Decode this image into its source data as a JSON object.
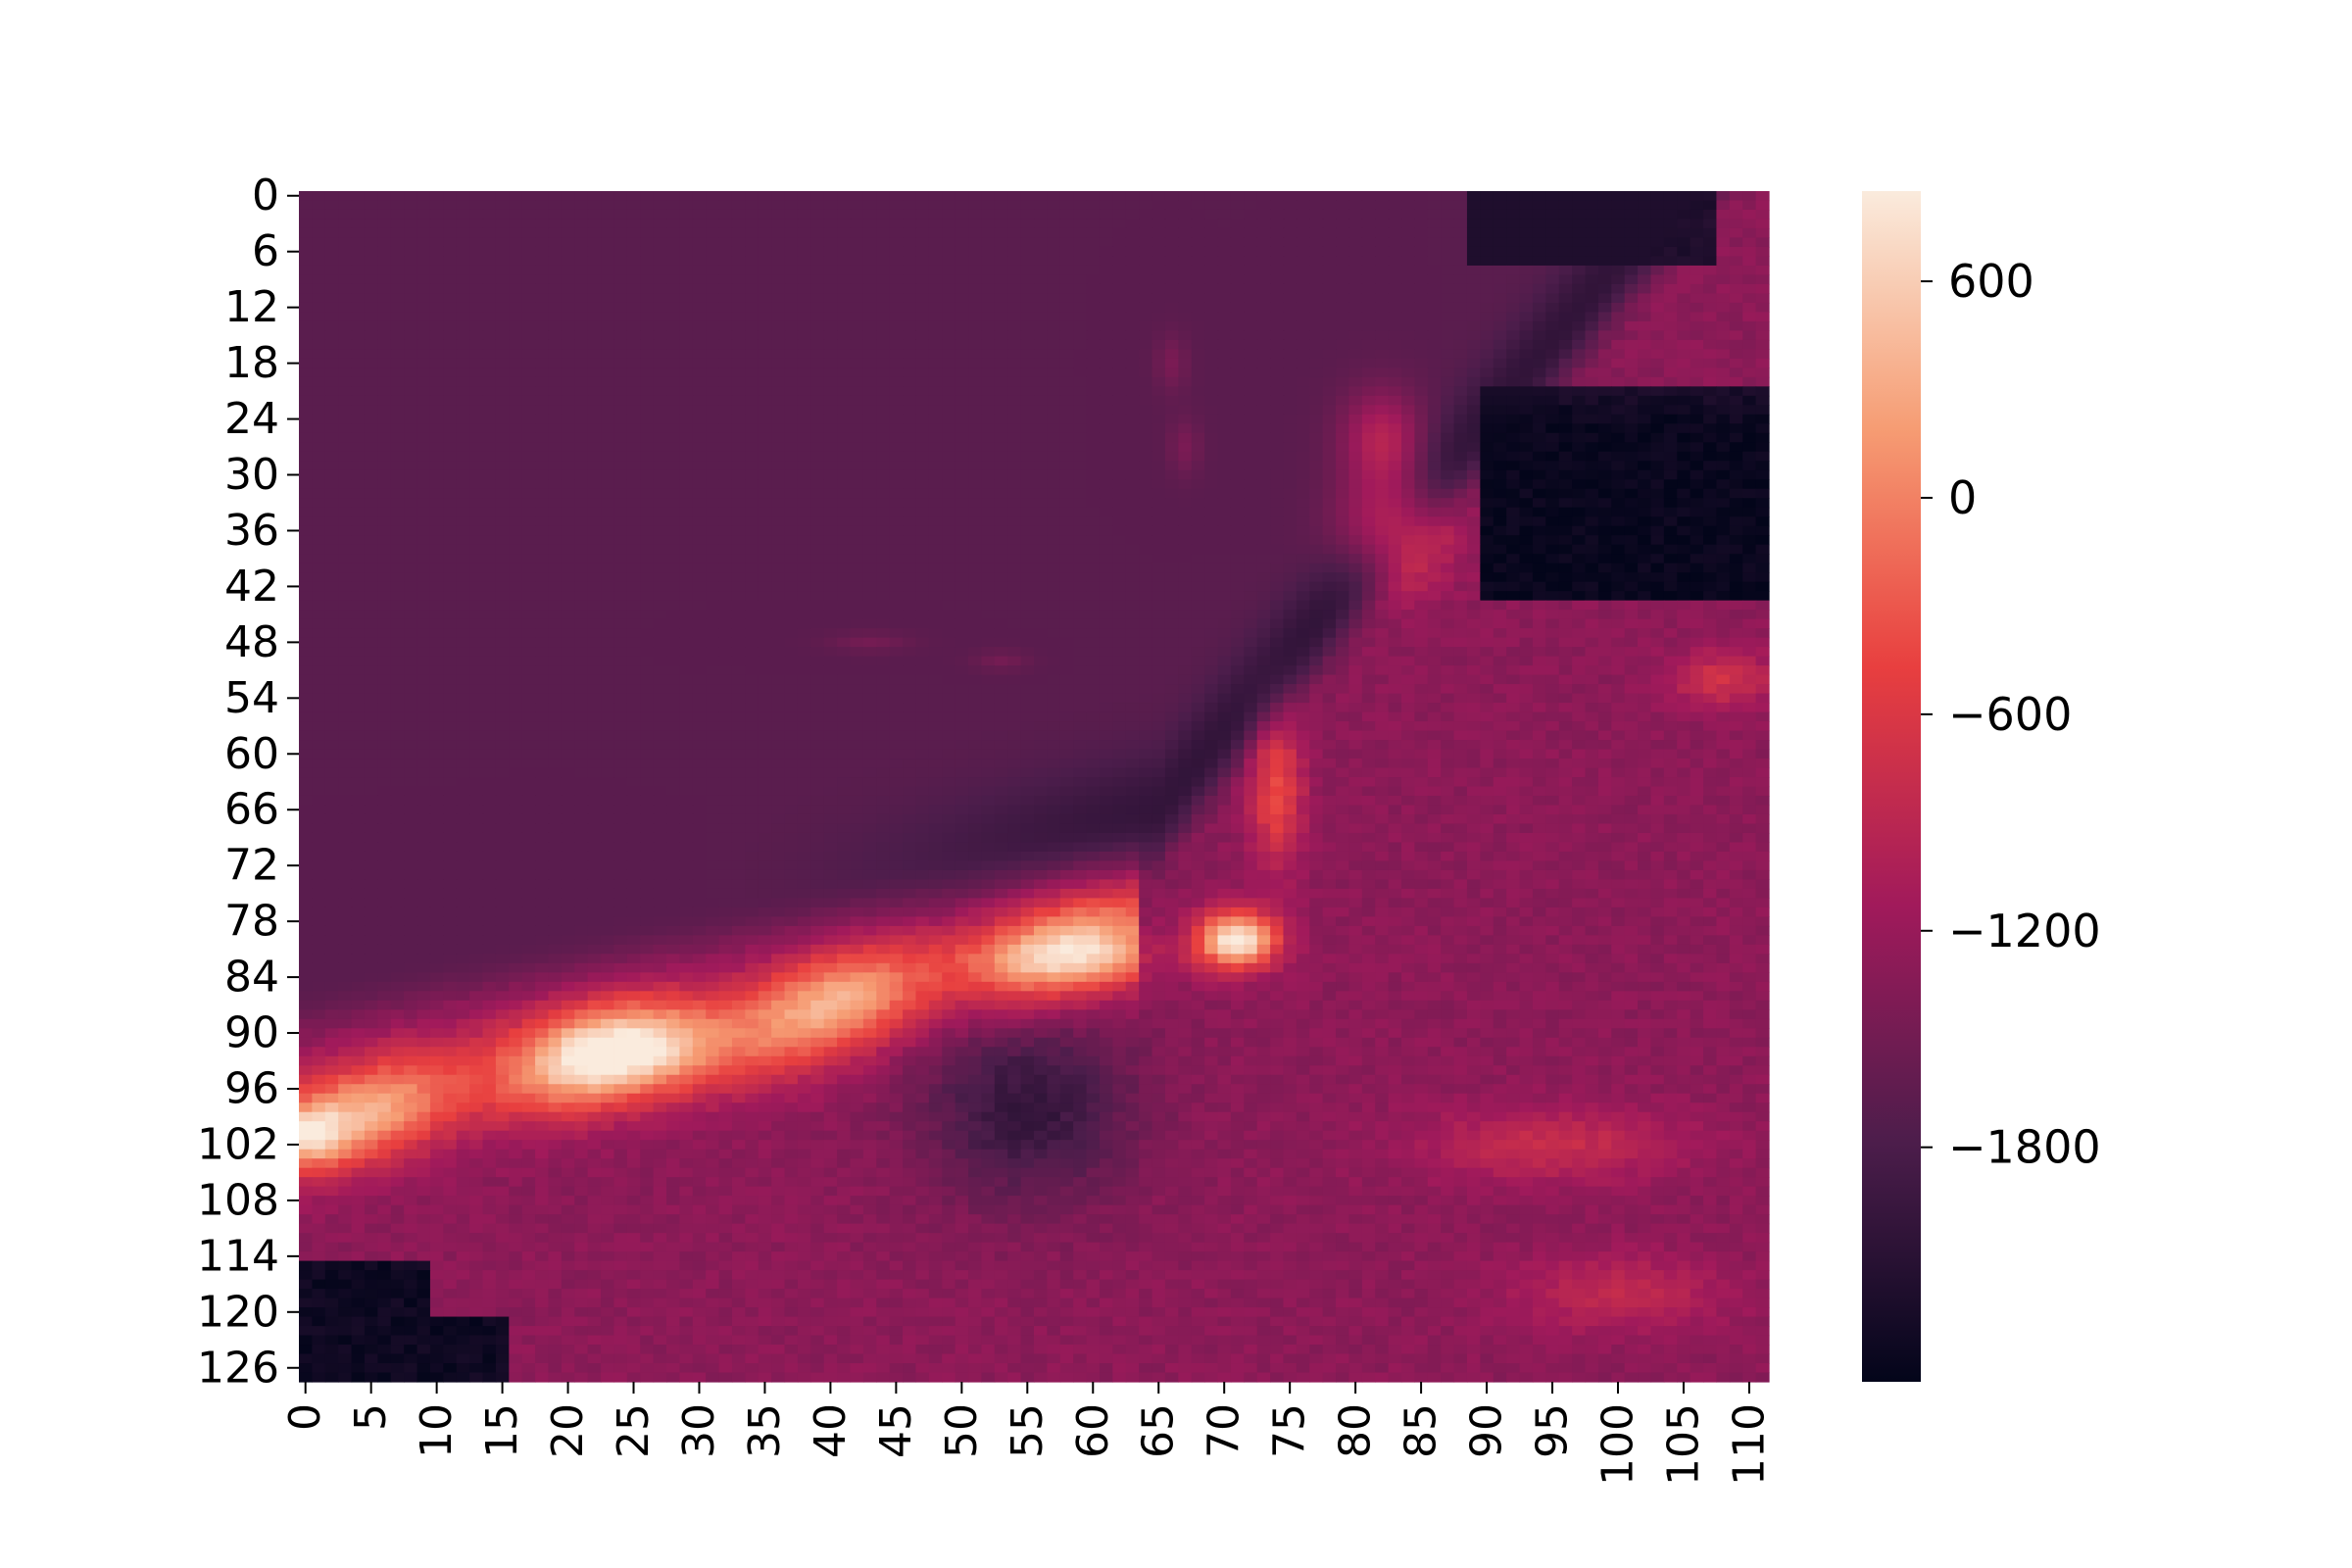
{
  "chart_data": {
    "type": "heatmap",
    "title": "",
    "xlabel": "",
    "ylabel": "",
    "rows": 128,
    "cols": 112,
    "x_ticks": [
      0,
      5,
      10,
      15,
      20,
      25,
      30,
      35,
      40,
      45,
      50,
      55,
      60,
      65,
      70,
      75,
      80,
      85,
      90,
      95,
      100,
      105,
      110
    ],
    "y_ticks": [
      0,
      6,
      12,
      18,
      24,
      30,
      36,
      42,
      48,
      54,
      60,
      66,
      72,
      78,
      84,
      90,
      96,
      102,
      108,
      114,
      120,
      126
    ],
    "colorbar": {
      "min": -2450,
      "max": 850,
      "ticks": [
        600,
        0,
        -600,
        -1200,
        -1800
      ],
      "tick_labels": [
        "600",
        "0",
        "−600",
        "−1200",
        "−1800"
      ],
      "colormap": "rocket",
      "colors": [
        "#03051a",
        "#4c1d4b",
        "#a11a5b",
        "#e83f3f",
        "#f69c73",
        "#faebdd"
      ]
    },
    "regions": [
      {
        "name": "upper-left plain",
        "value": -1680
      },
      {
        "name": "deep basin lower-left",
        "value": -2350
      },
      {
        "name": "deep basin upper-right",
        "value": -2400
      },
      {
        "name": "ridge crest near row 100 col 0",
        "value": 800
      },
      {
        "name": "peak near row 80 col 70",
        "value": 820
      },
      {
        "name": "ridge band rows 80-96 cols 20-60",
        "value": 200
      },
      {
        "name": "northeast ridge rows 25-40 cols 80-86",
        "value": -500
      },
      {
        "name": "trough rows 84-110 cols 45-65",
        "value": -1800
      },
      {
        "name": "lower-right terrain",
        "value": -1300
      }
    ],
    "grid": false,
    "legend": "colorbar-right"
  }
}
